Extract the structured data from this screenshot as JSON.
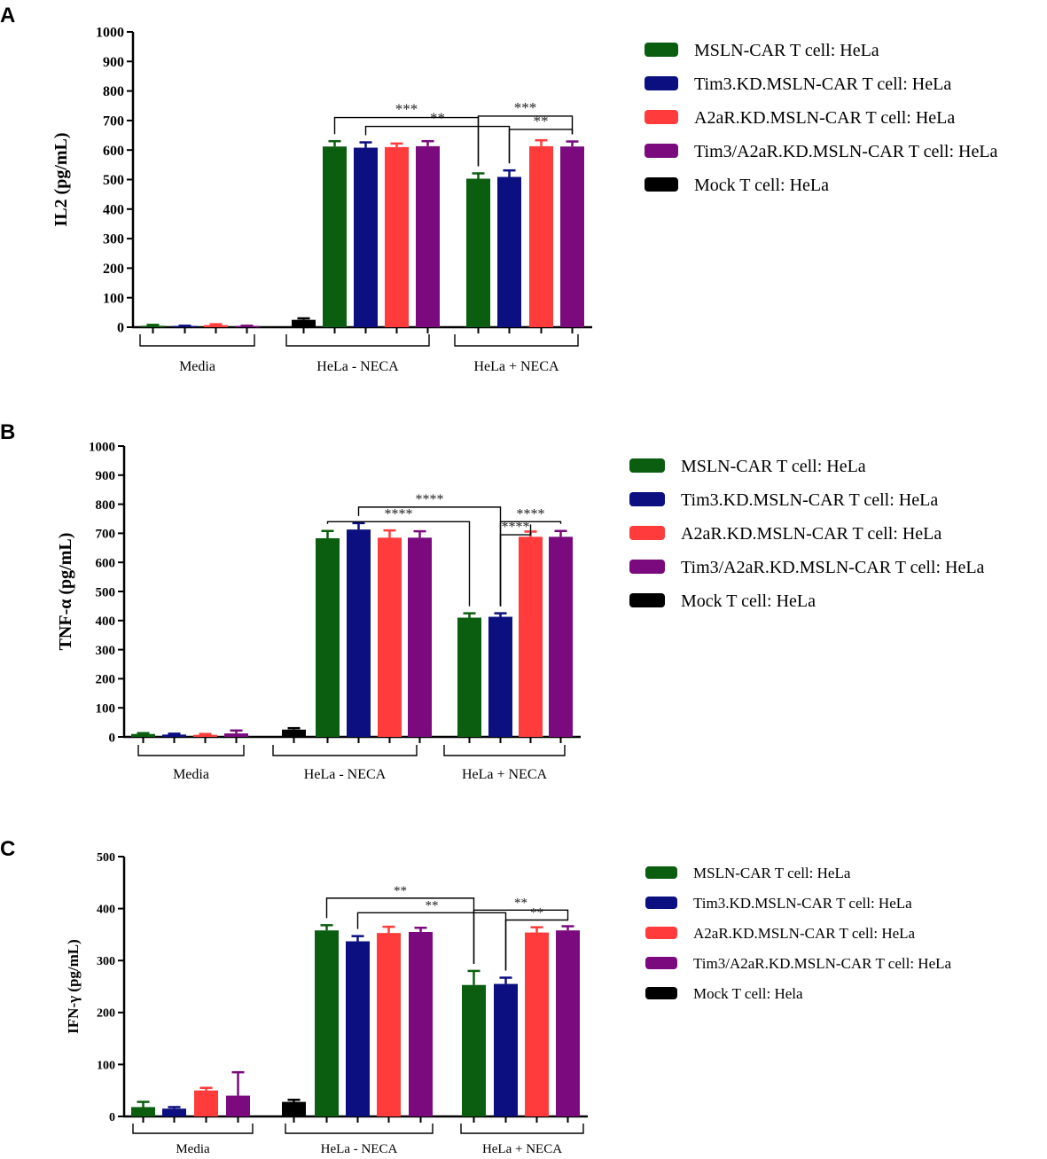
{
  "figure": {
    "colors": {
      "MSLN": "#0b5e10",
      "Tim3": "#0b0f80",
      "A2aR": "#ff3b3b",
      "Tim3A2aR": "#7a0a7e",
      "Mock": "#000000"
    }
  },
  "chart_data": [
    {
      "type": "bar",
      "panel": "A",
      "ylabel": "IL2 (pg/mL)",
      "ylim": [
        0,
        1000
      ],
      "yticks": [
        0,
        100,
        200,
        300,
        400,
        500,
        600,
        700,
        800,
        900,
        1000
      ],
      "groups": [
        "Media",
        "HeLa - NECA",
        "HeLa + NECA"
      ],
      "legend": [
        {
          "label": "MSLN-CAR T cell: HeLa",
          "color": "#0b5e10"
        },
        {
          "label": "Tim3.KD.MSLN-CAR T cell: HeLa",
          "color": "#0b0f80"
        },
        {
          "label": "A2aR.KD.MSLN-CAR T cell: HeLa",
          "color": "#ff3b3b"
        },
        {
          "label": "Tim3/A2aR.KD.MSLN-CAR T cell: HeLa",
          "color": "#7a0a7e"
        },
        {
          "label": "Mock T cell: HeLa",
          "color": "#000000"
        }
      ],
      "bars": [
        {
          "group": 0,
          "series": "MSLN",
          "color": "#0b5e10",
          "value": 5,
          "err": 3
        },
        {
          "group": 0,
          "series": "Tim3",
          "color": "#0b0f80",
          "value": 3,
          "err": 2
        },
        {
          "group": 0,
          "series": "A2aR",
          "color": "#ff3b3b",
          "value": 7,
          "err": 3
        },
        {
          "group": 0,
          "series": "Tim3A2aR",
          "color": "#7a0a7e",
          "value": 3,
          "err": 2
        },
        {
          "group": 1,
          "series": "Mock",
          "color": "#000000",
          "value": 25,
          "err": 5
        },
        {
          "group": 1,
          "series": "MSLN",
          "color": "#0b5e10",
          "value": 612,
          "err": 18
        },
        {
          "group": 1,
          "series": "Tim3",
          "color": "#0b0f80",
          "value": 608,
          "err": 18
        },
        {
          "group": 1,
          "series": "A2aR",
          "color": "#ff3b3b",
          "value": 610,
          "err": 12
        },
        {
          "group": 1,
          "series": "Tim3A2aR",
          "color": "#7a0a7e",
          "value": 613,
          "err": 17
        },
        {
          "group": 2,
          "series": "MSLN",
          "color": "#0b5e10",
          "value": 503,
          "err": 18
        },
        {
          "group": 2,
          "series": "Tim3",
          "color": "#0b0f80",
          "value": 509,
          "err": 22
        },
        {
          "group": 2,
          "series": "A2aR",
          "color": "#ff3b3b",
          "value": 613,
          "err": 20
        },
        {
          "group": 2,
          "series": "Tim3A2aR",
          "color": "#7a0a7e",
          "value": 612,
          "err": 17
        }
      ],
      "significance": [
        {
          "from": 5,
          "to": 9,
          "level": 710,
          "label": "***"
        },
        {
          "from": 6,
          "to": 10,
          "level": 680,
          "label": "**"
        },
        {
          "from": 9,
          "to": 12,
          "level": 715,
          "label": "***"
        },
        {
          "from": 10,
          "to": 12,
          "level": 670,
          "label": "**"
        }
      ]
    },
    {
      "type": "bar",
      "panel": "B",
      "ylabel": "TNF-α (pg/mL)",
      "ylim": [
        0,
        1000
      ],
      "yticks": [
        0,
        100,
        200,
        300,
        400,
        500,
        600,
        700,
        800,
        900,
        1000
      ],
      "groups": [
        "Media",
        "HeLa - NECA",
        "HeLa + NECA"
      ],
      "legend": [
        {
          "label": "MSLN-CAR T cell: HeLa",
          "color": "#0b5e10"
        },
        {
          "label": "Tim3.KD.MSLN-CAR T cell: HeLa",
          "color": "#0b0f80"
        },
        {
          "label": "A2aR.KD.MSLN-CAR T cell: HeLa",
          "color": "#ff3b3b"
        },
        {
          "label": "Tim3/A2aR.KD.MSLN-CAR T cell: HeLa",
          "color": "#7a0a7e"
        },
        {
          "label": "Mock T cell: HeLa",
          "color": "#000000"
        }
      ],
      "bars": [
        {
          "group": 0,
          "series": "MSLN",
          "color": "#0b5e10",
          "value": 10,
          "err": 3
        },
        {
          "group": 0,
          "series": "Tim3",
          "color": "#0b0f80",
          "value": 8,
          "err": 3
        },
        {
          "group": 0,
          "series": "A2aR",
          "color": "#ff3b3b",
          "value": 7,
          "err": 3
        },
        {
          "group": 0,
          "series": "Tim3A2aR",
          "color": "#7a0a7e",
          "value": 12,
          "err": 10
        },
        {
          "group": 1,
          "series": "Mock",
          "color": "#000000",
          "value": 25,
          "err": 5
        },
        {
          "group": 1,
          "series": "MSLN",
          "color": "#0b5e10",
          "value": 683,
          "err": 25
        },
        {
          "group": 1,
          "series": "Tim3",
          "color": "#0b0f80",
          "value": 713,
          "err": 22
        },
        {
          "group": 1,
          "series": "A2aR",
          "color": "#ff3b3b",
          "value": 685,
          "err": 25
        },
        {
          "group": 1,
          "series": "Tim3A2aR",
          "color": "#7a0a7e",
          "value": 685,
          "err": 22
        },
        {
          "group": 2,
          "series": "MSLN",
          "color": "#0b5e10",
          "value": 410,
          "err": 15
        },
        {
          "group": 2,
          "series": "Tim3",
          "color": "#0b0f80",
          "value": 413,
          "err": 12
        },
        {
          "group": 2,
          "series": "A2aR",
          "color": "#ff3b3b",
          "value": 688,
          "err": 18
        },
        {
          "group": 2,
          "series": "Tim3A2aR",
          "color": "#7a0a7e",
          "value": 688,
          "err": 20
        }
      ],
      "significance": [
        {
          "from": 6,
          "to": 10,
          "level": 790,
          "label": "****"
        },
        {
          "from": 5,
          "to": 9,
          "level": 740,
          "label": "****"
        },
        {
          "from": 10,
          "to": 12,
          "level": 740,
          "label": "****"
        },
        {
          "from": 10,
          "to": 11,
          "level": 695,
          "label": "****"
        }
      ]
    },
    {
      "type": "bar",
      "panel": "C",
      "ylabel": "IFN-γ (pg/mL)",
      "ylim": [
        0,
        500
      ],
      "yticks": [
        0,
        100,
        200,
        300,
        400,
        500
      ],
      "groups": [
        "Media",
        "HeLa - NECA",
        "HeLa + NECA"
      ],
      "legend": [
        {
          "label": "MSLN-CAR T cell: HeLa",
          "color": "#0b5e10"
        },
        {
          "label": "Tim3.KD.MSLN-CAR T cell: HeLa",
          "color": "#0b0f80"
        },
        {
          "label": "A2aR.KD.MSLN-CAR T cell: HeLa",
          "color": "#ff3b3b"
        },
        {
          "label": "Tim3/A2aR.KD.MSLN-CAR T cell: HeLa",
          "color": "#7a0a7e"
        },
        {
          "label": "Mock T cell: Hela",
          "color": "#000000"
        }
      ],
      "bars": [
        {
          "group": 0,
          "series": "MSLN",
          "color": "#0b5e10",
          "value": 18,
          "err": 10
        },
        {
          "group": 0,
          "series": "Tim3",
          "color": "#0b0f80",
          "value": 15,
          "err": 3
        },
        {
          "group": 0,
          "series": "A2aR",
          "color": "#ff3b3b",
          "value": 50,
          "err": 5
        },
        {
          "group": 0,
          "series": "Tim3A2aR",
          "color": "#7a0a7e",
          "value": 40,
          "err": 45
        },
        {
          "group": 1,
          "series": "Mock",
          "color": "#000000",
          "value": 28,
          "err": 4
        },
        {
          "group": 1,
          "series": "MSLN",
          "color": "#0b5e10",
          "value": 358,
          "err": 10
        },
        {
          "group": 1,
          "series": "Tim3",
          "color": "#0b0f80",
          "value": 337,
          "err": 10
        },
        {
          "group": 1,
          "series": "A2aR",
          "color": "#ff3b3b",
          "value": 353,
          "err": 12
        },
        {
          "group": 1,
          "series": "Tim3A2aR",
          "color": "#7a0a7e",
          "value": 355,
          "err": 8
        },
        {
          "group": 2,
          "series": "MSLN",
          "color": "#0b5e10",
          "value": 253,
          "err": 27
        },
        {
          "group": 2,
          "series": "Tim3",
          "color": "#0b0f80",
          "value": 255,
          "err": 12
        },
        {
          "group": 2,
          "series": "A2aR",
          "color": "#ff3b3b",
          "value": 354,
          "err": 10
        },
        {
          "group": 2,
          "series": "Tim3A2aR",
          "color": "#7a0a7e",
          "value": 358,
          "err": 8
        }
      ],
      "significance": [
        {
          "from": 5,
          "to": 9,
          "level": 420,
          "label": "**"
        },
        {
          "from": 6,
          "to": 10,
          "level": 392,
          "label": "**"
        },
        {
          "from": 9,
          "to": 12,
          "level": 397,
          "label": "**"
        },
        {
          "from": 10,
          "to": 12,
          "level": 378,
          "label": "**"
        }
      ]
    }
  ]
}
